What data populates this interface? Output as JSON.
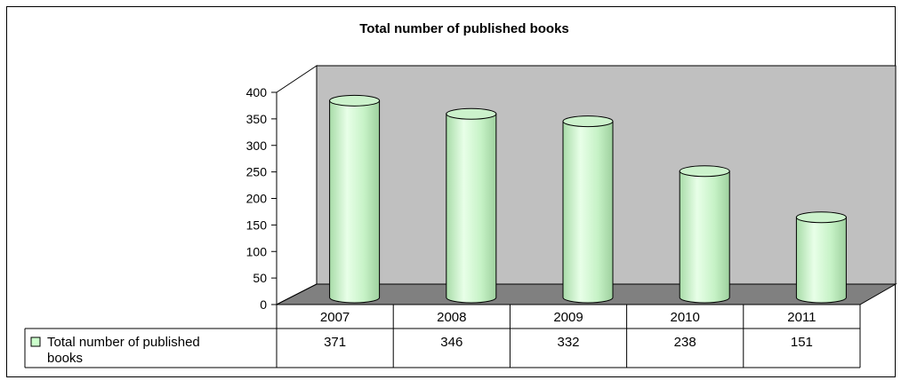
{
  "chart_data": {
    "type": "bar",
    "title": "Total number of published books",
    "categories": [
      "2007",
      "2008",
      "2009",
      "2010",
      "2011"
    ],
    "series": [
      {
        "name": "Total number of published books",
        "values": [
          371,
          346,
          332,
          238,
          151
        ]
      }
    ],
    "value_labels": [
      "371",
      "346",
      "332",
      "238",
      "151"
    ],
    "ylim": [
      0,
      400
    ],
    "yticks": [
      "0",
      "50",
      "100",
      "150",
      "200",
      "250",
      "300",
      "350",
      "400"
    ],
    "legend_label_lines": [
      "Total number of published",
      "books"
    ],
    "style": "3d-cylinder",
    "data_table": true,
    "colors": {
      "bar_fill": "#ccffcc",
      "back_wall": "#c0c0c0",
      "floor": "#808080",
      "frame_border": "#000000"
    }
  }
}
